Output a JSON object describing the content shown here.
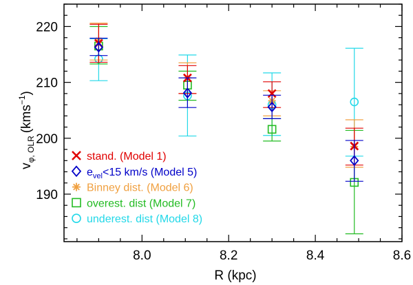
{
  "chart_data": {
    "type": "scatter",
    "title": "",
    "xlabel": "R (kpc)",
    "ylabel": {
      "base": "v",
      "subscript": "φ, OLR",
      "unit_prefix": "(kms",
      "unit_exp": "−1",
      "unit_suffix": ")"
    },
    "xlim": [
      7.82,
      8.6
    ],
    "ylim": [
      181.5,
      224
    ],
    "xticks": [
      8.0,
      8.2,
      8.4,
      8.6
    ],
    "xtick_labels": [
      "8.0",
      "8.2",
      "8.4",
      "8.6"
    ],
    "yticks": [
      190,
      200,
      210,
      220
    ],
    "ytick_labels": [
      "190",
      "200",
      "210",
      "220"
    ],
    "grid": false,
    "legend_position": "lower-left",
    "series": [
      {
        "name": "stand. (Model 1)",
        "label_parts": [
          "stand. (Model 1)"
        ],
        "marker": "x",
        "color": "#e00000",
        "points": [
          {
            "x": 7.9,
            "y": 217.0,
            "ylo": 213.6,
            "yhi": 220.4
          },
          {
            "x": 8.105,
            "y": 210.8,
            "ylo": 208.0,
            "yhi": 213.0
          },
          {
            "x": 8.3,
            "y": 208.0,
            "ylo": 205.5,
            "yhi": 210.1
          },
          {
            "x": 8.49,
            "y": 198.6,
            "ylo": 195.2,
            "yhi": 201.8
          }
        ]
      },
      {
        "name": "e_vel<15 km/s (Model 5)",
        "label_parts": [
          "e",
          "vel",
          "<15 km/s (Model 5)"
        ],
        "marker": "diamond",
        "color": "#0000c8",
        "points": [
          {
            "x": 7.9,
            "y": 216.3,
            "ylo": 214.8,
            "yhi": 217.9
          },
          {
            "x": 8.105,
            "y": 208.1,
            "ylo": 205.5,
            "yhi": 210.8
          },
          {
            "x": 8.3,
            "y": 205.6,
            "ylo": 203.5,
            "yhi": 207.7
          },
          {
            "x": 8.49,
            "y": 196.0,
            "ylo": 192.3,
            "yhi": 199.6
          }
        ]
      },
      {
        "name": "Binney dist. (Model 6)",
        "label_parts": [
          "Binney dist. (Model 6)"
        ],
        "marker": "asterisk",
        "color": "#f0a040",
        "points": [
          {
            "x": 7.9,
            "y": 217.5,
            "ylo": 214.0,
            "yhi": 220.6
          },
          {
            "x": 8.105,
            "y": 210.8,
            "ylo": 208.0,
            "yhi": 213.5
          },
          {
            "x": 8.3,
            "y": 206.7,
            "ylo": 204.0,
            "yhi": 208.5
          },
          {
            "x": 8.49,
            "y": 198.5,
            "ylo": 194.8,
            "yhi": 203.3
          }
        ]
      },
      {
        "name": "overest. dist (Model 7)",
        "label_parts": [
          "overest. dist (Model 7)"
        ],
        "marker": "square",
        "color": "#22bb22",
        "points": [
          {
            "x": 7.9,
            "y": 216.5,
            "ylo": 213.3,
            "yhi": 220.0
          },
          {
            "x": 8.105,
            "y": 209.5,
            "ylo": 206.8,
            "yhi": 212.0
          },
          {
            "x": 8.3,
            "y": 201.6,
            "ylo": 199.5,
            "yhi": 203.5
          },
          {
            "x": 8.49,
            "y": 192.1,
            "ylo": 182.9,
            "yhi": 201.4
          }
        ]
      },
      {
        "name": "underest. dist (Model 8)",
        "label_parts": [
          "underest. dist (Model 8)"
        ],
        "marker": "circle",
        "color": "#22d8e8",
        "points": [
          {
            "x": 7.9,
            "y": 214.2,
            "ylo": 210.3,
            "yhi": 217.8
          },
          {
            "x": 8.105,
            "y": 207.6,
            "ylo": 200.4,
            "yhi": 214.9
          },
          {
            "x": 8.3,
            "y": 206.0,
            "ylo": 200.5,
            "yhi": 211.7
          },
          {
            "x": 8.49,
            "y": 206.5,
            "ylo": 196.8,
            "yhi": 216.1
          }
        ]
      }
    ]
  }
}
